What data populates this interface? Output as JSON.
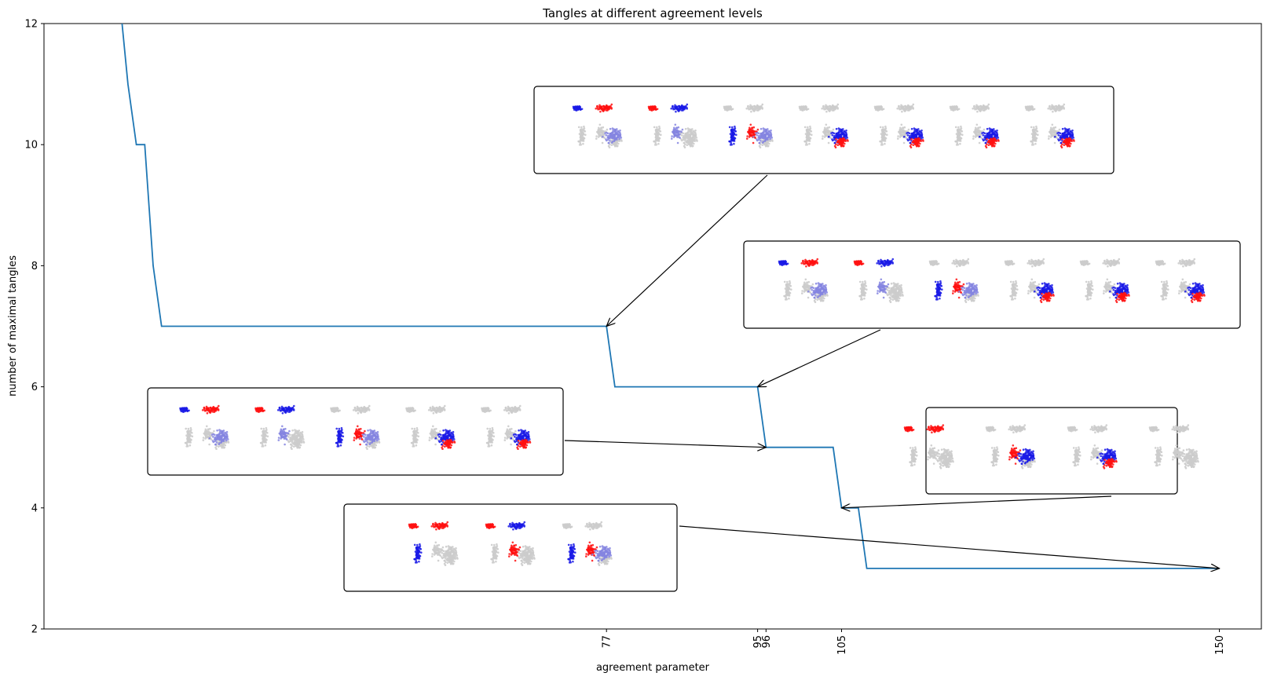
{
  "chart_data": {
    "type": "line",
    "title": "Tangles at different agreement levels",
    "xlabel": "agreement parameter",
    "ylabel": "number of maximal tangles",
    "xlim": [
      10,
      155
    ],
    "ylim": [
      2,
      12
    ],
    "xticks": [
      77,
      95,
      96,
      105,
      150
    ],
    "yticks": [
      2,
      4,
      6,
      8,
      10,
      12
    ],
    "grid": false,
    "series": [
      {
        "color": "#1f77b4",
        "x": [
          19.3,
          20,
          21,
          22,
          23,
          24,
          77,
          78,
          95,
          96,
          104,
          105,
          107,
          108,
          150
        ],
        "y": [
          12,
          11,
          10,
          10,
          8,
          7,
          7,
          6,
          6,
          5,
          5,
          4,
          4,
          3,
          3
        ]
      }
    ],
    "annotations": [
      {
        "target_x": 77,
        "target_y": 7,
        "tangles": 7
      },
      {
        "target_x": 95,
        "target_y": 6,
        "tangles": 6
      },
      {
        "target_x": 96,
        "target_y": 5,
        "tangles": 5
      },
      {
        "target_x": 105,
        "target_y": 4,
        "tangles": 4
      },
      {
        "target_x": 150,
        "target_y": 3,
        "tangles": 3
      }
    ],
    "colors": {
      "blue": "#1a1ae6",
      "light_blue": "#8585e0",
      "red": "#ff1010",
      "purple": "#a00070",
      "grey": "#cccccc"
    }
  }
}
